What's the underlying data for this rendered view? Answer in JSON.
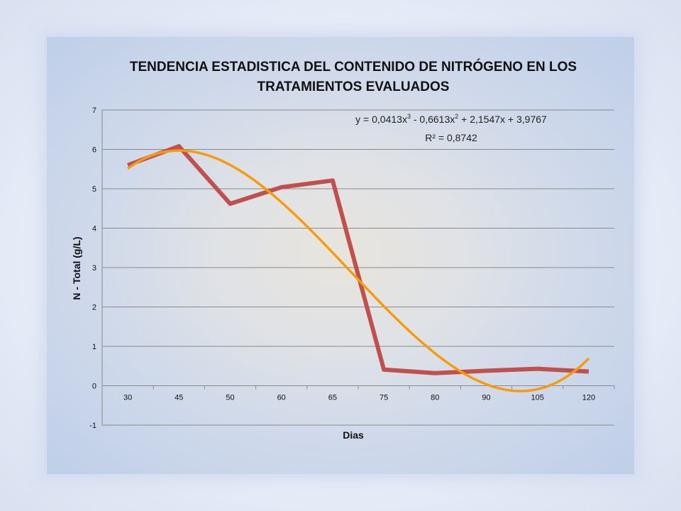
{
  "chart_data": {
    "type": "line",
    "title_line1": "TENDENCIA ESTADISTICA DEL CONTENIDO DE NITRÓGENO EN LOS",
    "title_line2": "TRATAMIENTOS EVALUADOS",
    "xlabel": "Dias",
    "ylabel": "N - Total (g/L)",
    "categories": [
      "30",
      "45",
      "50",
      "60",
      "65",
      "75",
      "80",
      "90",
      "105",
      "120"
    ],
    "ylim": [
      -1,
      7
    ],
    "y_ticks": [
      "-1",
      "0",
      "1",
      "2",
      "3",
      "4",
      "5",
      "6",
      "7"
    ],
    "grid": true,
    "series": [
      {
        "values": [
          5.6,
          6.08,
          4.62,
          5.04,
          5.21,
          0.41,
          0.32,
          0.38,
          0.43,
          0.36
        ],
        "color": "#c0504d"
      }
    ],
    "trendline": {
      "type": "polynomial",
      "order": 3,
      "coefficients": [
        0.0413,
        -0.6613,
        2.1547,
        3.9767
      ],
      "color": "#f79b0e",
      "equation_prefix": "y = 0,0413x",
      "equation_exp1": "3",
      "equation_mid": " - 0,6613x",
      "equation_exp2": "2",
      "equation_suffix": " + 2,1547x + 3,9767",
      "r2_label": "R² = 0,8742"
    }
  }
}
